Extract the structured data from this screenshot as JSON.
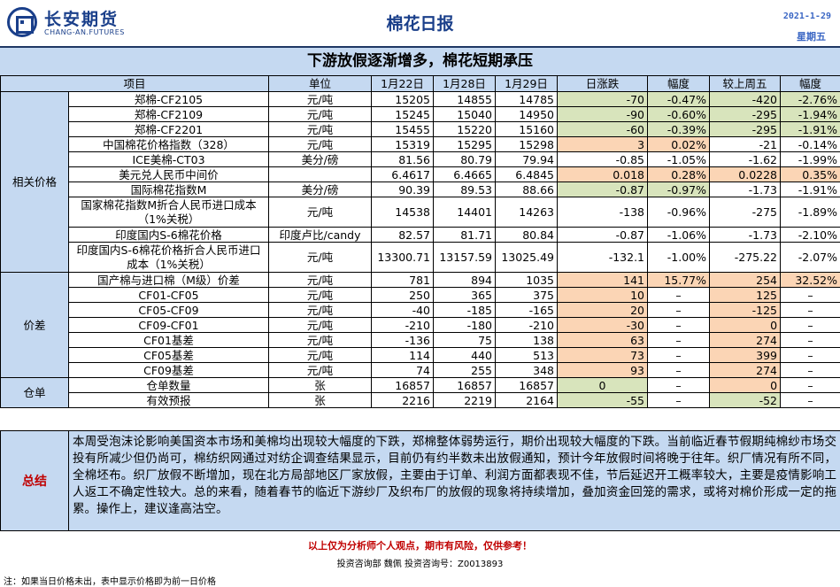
{
  "header": {
    "logo_cn": "长安期货",
    "logo_en": "CHANG-AN.FUTURES",
    "title": "棉花日报",
    "date": "2021-1-29",
    "weekday": "星期五"
  },
  "headline": "下游放假逐渐增多，棉花短期承压",
  "columns": [
    "项目",
    "单位",
    "1月22日",
    "1月28日",
    "1月29日",
    "日涨跌",
    "幅度",
    "较上周五",
    "幅度"
  ],
  "sections": {
    "related": "相关价格",
    "spread": "价差",
    "warehouse": "仓单"
  },
  "rows": [
    {
      "item": "郑棉-CF2105",
      "unit": "元/吨",
      "d1": "15205",
      "d2": "14855",
      "d3": "14785",
      "chg": "-70",
      "pct": "-0.47%",
      "wk": "-420",
      "wpct": "-2.76%"
    },
    {
      "item": "郑棉-CF2109",
      "unit": "元/吨",
      "d1": "15245",
      "d2": "15040",
      "d3": "14950",
      "chg": "-90",
      "pct": "-0.60%",
      "wk": "-295",
      "wpct": "-1.94%"
    },
    {
      "item": "郑棉-CF2201",
      "unit": "元/吨",
      "d1": "15455",
      "d2": "15220",
      "d3": "15160",
      "chg": "-60",
      "pct": "-0.39%",
      "wk": "-295",
      "wpct": "-1.91%"
    },
    {
      "item": "中国棉花价格指数（328）",
      "unit": "元/吨",
      "d1": "15319",
      "d2": "15295",
      "d3": "15298",
      "chg": "3",
      "pct": "0.02%",
      "wk": "-21",
      "wpct": "-0.14%"
    },
    {
      "item": "ICE美棉-CT03",
      "unit": "美分/磅",
      "d1": "81.56",
      "d2": "80.79",
      "d3": "79.94",
      "chg": "-0.85",
      "pct": "-1.05%",
      "wk": "-1.62",
      "wpct": "-1.99%"
    },
    {
      "item": "美元兑人民币中间价",
      "unit": "",
      "d1": "6.4617",
      "d2": "6.4665",
      "d3": "6.4845",
      "chg": "0.018",
      "pct": "0.28%",
      "wk": "0.0228",
      "wpct": "0.35%"
    },
    {
      "item": "国际棉花指数M",
      "unit": "美分/磅",
      "d1": "90.39",
      "d2": "89.53",
      "d3": "88.66",
      "chg": "-0.87",
      "pct": "-0.97%",
      "wk": "-1.73",
      "wpct": "-1.91%"
    },
    {
      "item": "国家棉花指数M折合人民币进口成本（1%关税）",
      "unit": "元/吨",
      "d1": "14538",
      "d2": "14401",
      "d3": "14263",
      "chg": "-138",
      "pct": "-0.96%",
      "wk": "-275",
      "wpct": "-1.89%"
    },
    {
      "item": "印度国内S-6棉花价格",
      "unit": "印度卢比/candy",
      "d1": "82.57",
      "d2": "81.71",
      "d3": "80.84",
      "chg": "-0.87",
      "pct": "-1.06%",
      "wk": "-1.73",
      "wpct": "-2.10%"
    },
    {
      "item": "印度国内S-6棉花价格折合人民币进口成本（1%关税）",
      "unit": "元/吨",
      "d1": "13300.71",
      "d2": "13157.59",
      "d3": "13025.49",
      "chg": "-132.1",
      "pct": "-1.00%",
      "wk": "-275.22",
      "wpct": "-2.07%"
    },
    {
      "item": "国产棉与进口棉（M级）价差",
      "unit": "元/吨",
      "d1": "781",
      "d2": "894",
      "d3": "1035",
      "chg": "141",
      "pct": "15.77%",
      "wk": "254",
      "wpct": "32.52%"
    },
    {
      "item": "CF01-CF05",
      "unit": "元/吨",
      "d1": "250",
      "d2": "365",
      "d3": "375",
      "chg": "10",
      "pct": "–",
      "wk": "125",
      "wpct": "–"
    },
    {
      "item": "CF05-CF09",
      "unit": "元/吨",
      "d1": "-40",
      "d2": "-185",
      "d3": "-165",
      "chg": "20",
      "pct": "–",
      "wk": "-125",
      "wpct": "–"
    },
    {
      "item": "CF09-CF01",
      "unit": "元/吨",
      "d1": "-210",
      "d2": "-180",
      "d3": "-210",
      "chg": "-30",
      "pct": "–",
      "wk": "0",
      "wpct": "–"
    },
    {
      "item": "CF01基差",
      "unit": "元/吨",
      "d1": "-136",
      "d2": "75",
      "d3": "138",
      "chg": "63",
      "pct": "–",
      "wk": "274",
      "wpct": "–"
    },
    {
      "item": "CF05基差",
      "unit": "元/吨",
      "d1": "114",
      "d2": "440",
      "d3": "513",
      "chg": "73",
      "pct": "–",
      "wk": "399",
      "wpct": "–"
    },
    {
      "item": "CF09基差",
      "unit": "元/吨",
      "d1": "74",
      "d2": "255",
      "d3": "348",
      "chg": "93",
      "pct": "–",
      "wk": "274",
      "wpct": "–"
    },
    {
      "item": "仓单数量",
      "unit": "张",
      "d1": "16857",
      "d2": "16857",
      "d3": "16857",
      "chg": "0",
      "pct": "–",
      "wk": "0",
      "wpct": "–"
    },
    {
      "item": "有效预报",
      "unit": "张",
      "d1": "2216",
      "d2": "2219",
      "d3": "2164",
      "chg": "-55",
      "pct": "–",
      "wk": "-52",
      "wpct": "–"
    }
  ],
  "summary": {
    "label": "总结",
    "text": "本周受泡沫论影响美国资本市场和美棉均出现较大幅度的下跌，郑棉整体弱势运行，期价出现较大幅度的下跌。当前临近春节假期纯棉纱市场交投有所减少但仍尚可，棉纺织网通过对纺企调查结果显示，目前仍有约半数未出放假通知，预计今年放假时间将晚于往年。织厂情况有所不同，全棉坯布。织厂放假不断增加，现在北方局部地区厂家放假，主要由于订单、利润方面都表现不佳，节后延迟开工概率较大，主要是疫情影响工人返工不确定性较大。总的来看，随着春节的临近下游纱厂及织布厂的放假的现象将持续增加，叠加资金回笼的需求，或将对棉价形成一定的拖累。操作上，建议逢高沽空。"
  },
  "disclaimer": "以上仅为分析师个人观点，期市有风险，仅供参考！",
  "contact": "投资咨询部 魏佩   投资咨询号：Z0013893",
  "footnote": "注：如果当日价格未出，表中显示价格即为前一日价格"
}
